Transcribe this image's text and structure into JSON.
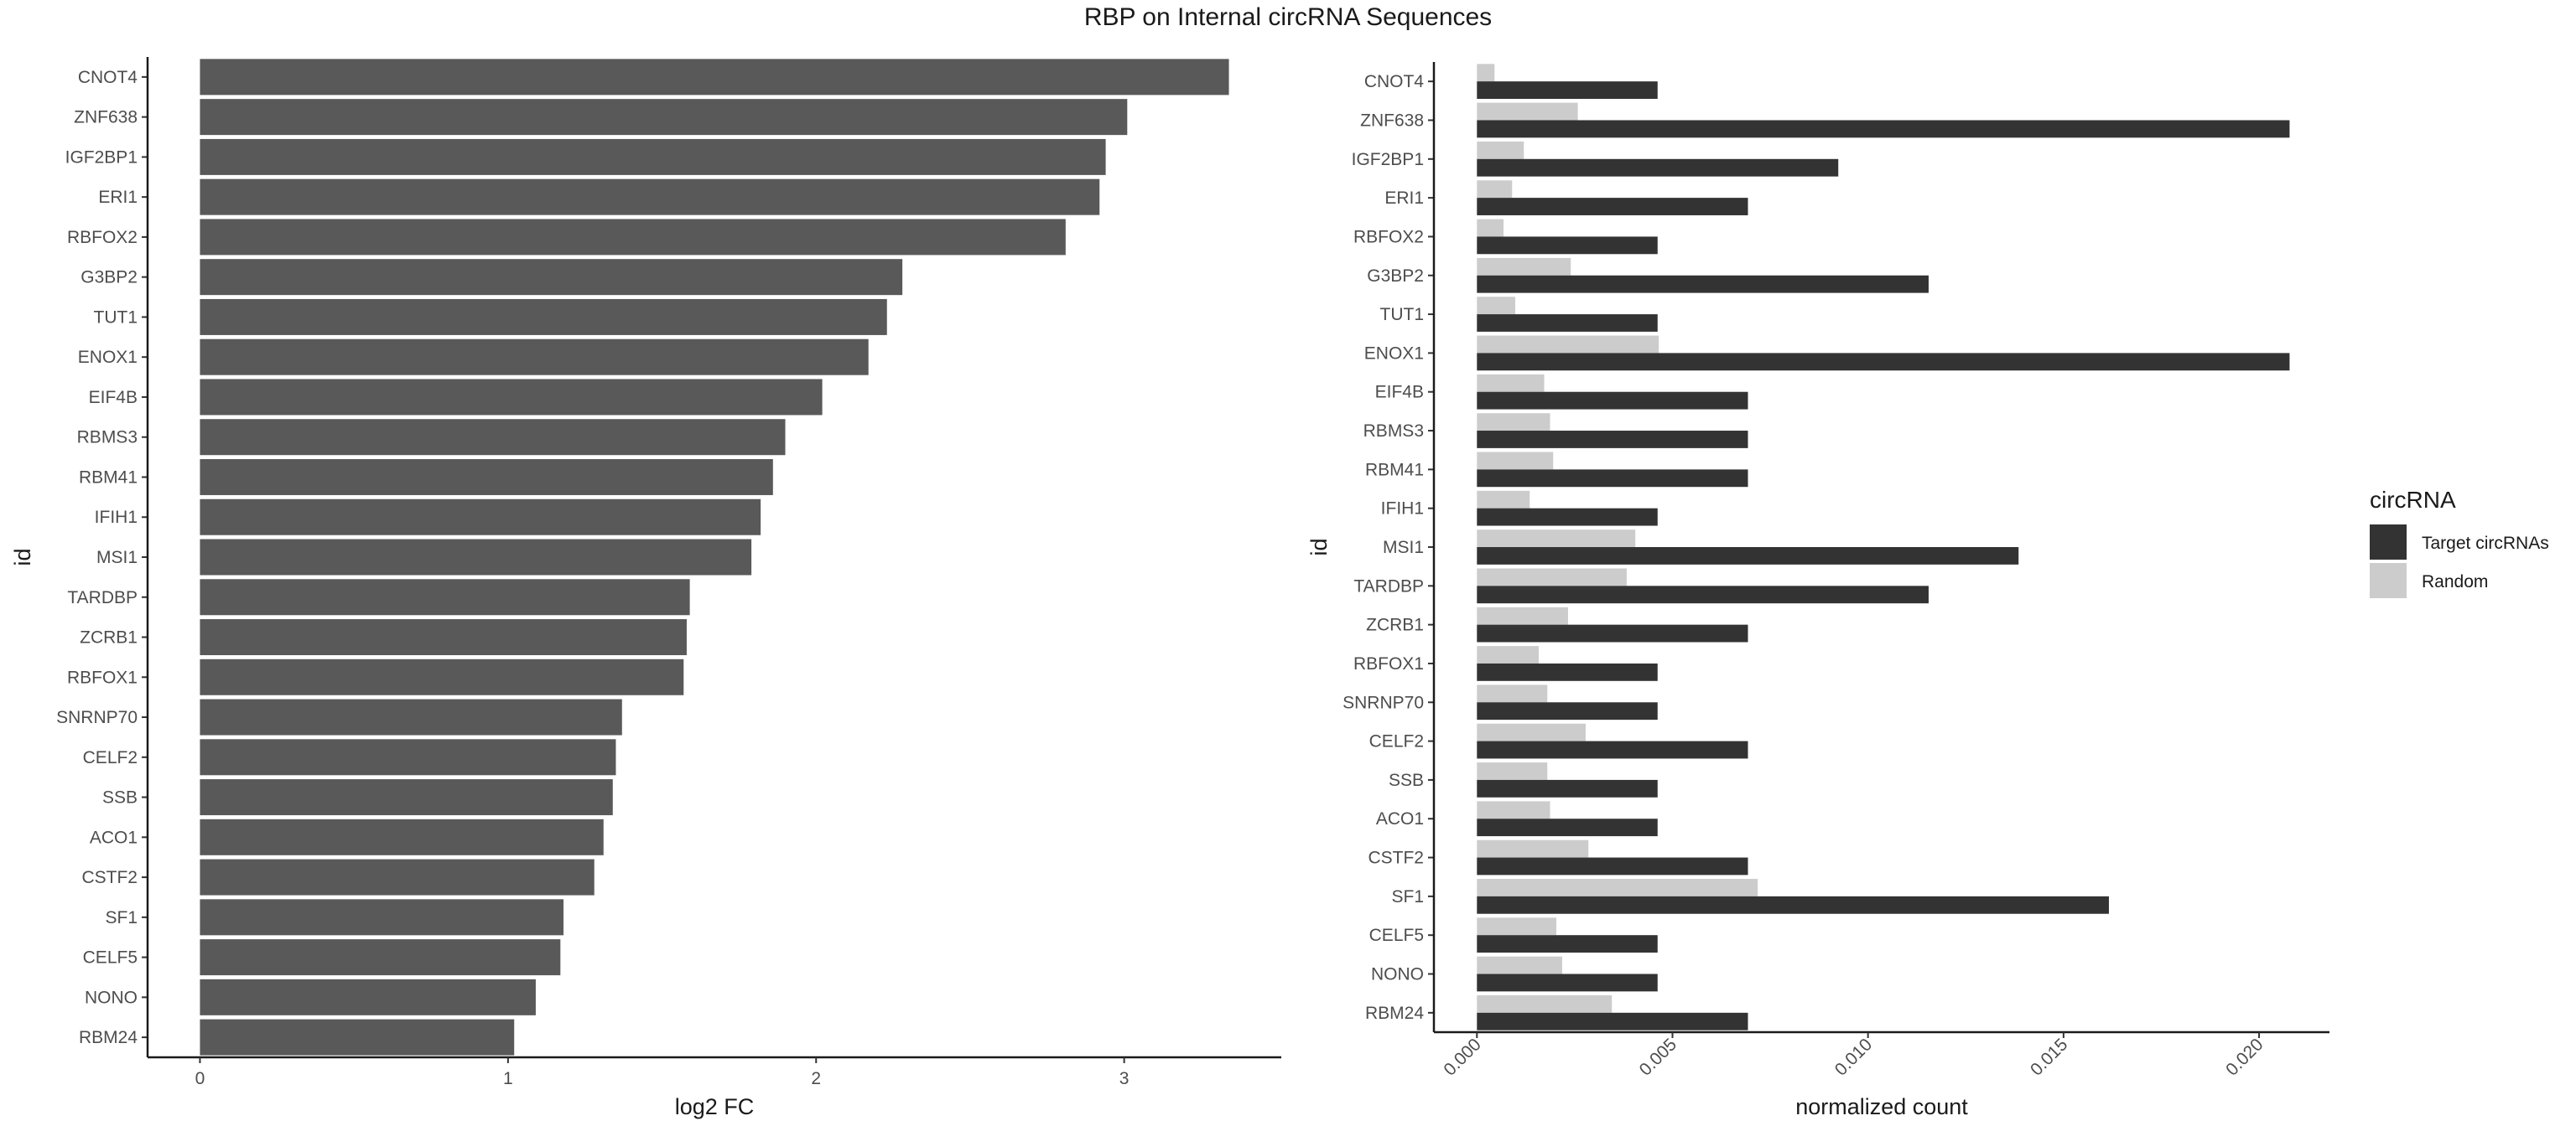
{
  "title": "RBP on Internal circRNA Sequences",
  "chart_data": [
    {
      "type": "bar",
      "orientation": "horizontal",
      "categories": [
        "CNOT4",
        "ZNF638",
        "IGF2BP1",
        "ERI1",
        "RBFOX2",
        "G3BP2",
        "TUT1",
        "ENOX1",
        "EIF4B",
        "RBMS3",
        "RBM41",
        "IFIH1",
        "MSI1",
        "TARDBP",
        "ZCRB1",
        "RBFOX1",
        "SNRNP70",
        "CELF2",
        "SSB",
        "ACO1",
        "CSTF2",
        "SF1",
        "CELF5",
        "NONO",
        "RBM24"
      ],
      "values": [
        3.34,
        3.01,
        2.94,
        2.92,
        2.81,
        2.28,
        2.23,
        2.17,
        2.02,
        1.9,
        1.86,
        1.82,
        1.79,
        1.59,
        1.58,
        1.57,
        1.37,
        1.35,
        1.34,
        1.31,
        1.28,
        1.18,
        1.17,
        1.09,
        1.02
      ],
      "xlabel": "log2 FC",
      "ylabel": "id",
      "xlim": [
        -0.17,
        3.51
      ],
      "xticks": [
        "0",
        "1",
        "2",
        "3"
      ],
      "color": "#595959",
      "grid": false
    },
    {
      "type": "bar",
      "orientation": "horizontal",
      "grouped": true,
      "categories": [
        "CNOT4",
        "ZNF638",
        "IGF2BP1",
        "ERI1",
        "RBFOX2",
        "G3BP2",
        "TUT1",
        "ENOX1",
        "EIF4B",
        "RBMS3",
        "RBM41",
        "IFIH1",
        "MSI1",
        "TARDBP",
        "ZCRB1",
        "RBFOX1",
        "SNRNP70",
        "CELF2",
        "SSB",
        "ACO1",
        "CSTF2",
        "SF1",
        "CELF5",
        "NONO",
        "RBM24"
      ],
      "series": [
        {
          "name": "Target circRNAs",
          "color": "#333333",
          "values": [
            0.00462,
            0.02078,
            0.00924,
            0.00693,
            0.00462,
            0.01155,
            0.00462,
            0.02078,
            0.00693,
            0.00693,
            0.00693,
            0.00462,
            0.01385,
            0.01155,
            0.00693,
            0.00462,
            0.00462,
            0.00693,
            0.00462,
            0.00462,
            0.00693,
            0.01616,
            0.00462,
            0.00462,
            0.00693
          ]
        },
        {
          "name": "Random",
          "color": "#cccccc",
          "values": [
            0.00045,
            0.00258,
            0.0012,
            0.0009,
            0.00068,
            0.0024,
            0.00098,
            0.00465,
            0.00172,
            0.00187,
            0.00195,
            0.00135,
            0.00405,
            0.00383,
            0.00233,
            0.00158,
            0.0018,
            0.00278,
            0.0018,
            0.00187,
            0.00285,
            0.00718,
            0.00203,
            0.00218,
            0.00345
          ]
        }
      ],
      "xlabel": "normalized count",
      "ylabel": "id",
      "xlim": [
        -0.0011,
        0.0218
      ],
      "xticks": [
        "0.000",
        "0.005",
        "0.010",
        "0.015",
        "0.020"
      ],
      "legend": {
        "title": "circRNA",
        "placement": "right"
      },
      "grid": false
    }
  ]
}
